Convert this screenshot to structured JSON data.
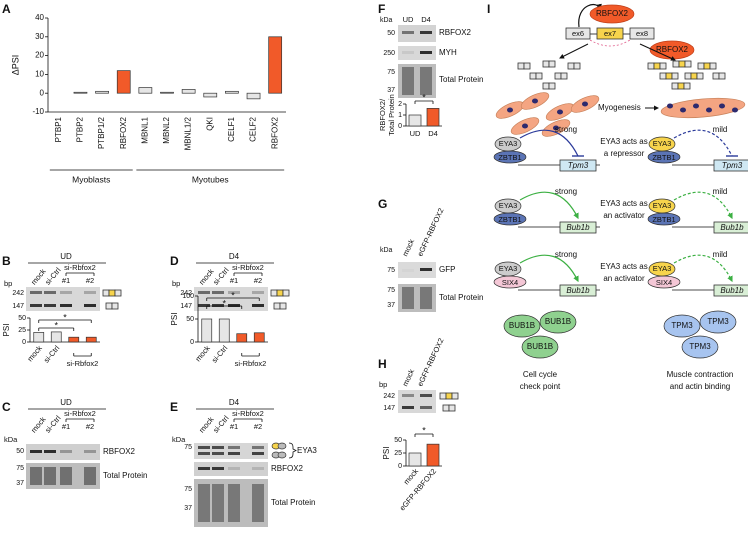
{
  "chart_data": [
    {
      "type": "bar",
      "ylabel": "ΔPSI",
      "categories": [
        "PTBP1",
        "PTBP2",
        "PTBP1/2",
        "RBFOX2",
        "MBNL1",
        "MBNL2",
        "MBNL1/2",
        "QKI",
        "CELF1",
        "CELF2",
        "RBFOX2"
      ],
      "values": [
        0,
        0.5,
        1,
        12,
        3,
        0.5,
        2,
        -2,
        1,
        -3,
        30
      ],
      "colors": [
        "#e6e6e6",
        "#e6e6e6",
        "#e6e6e6",
        "#f15a29",
        "#e6e6e6",
        "#e6e6e6",
        "#e6e6e6",
        "#e6e6e6",
        "#e6e6e6",
        "#e6e6e6",
        "#f15a29"
      ],
      "ylim": [
        -10,
        40
      ],
      "yticks": [
        -10,
        0,
        10,
        20,
        30,
        40
      ],
      "groups": [
        "Myoblasts",
        "Myotubes"
      ]
    },
    {
      "type": "bar",
      "ylabel": "PSI",
      "categories": [
        "mock",
        "si-Ctrl",
        null,
        null
      ],
      "group": "si-Rbfox2",
      "values": [
        20,
        21,
        10,
        10
      ],
      "colors": [
        "#e6e6e6",
        "#e6e6e6",
        "#f15a29",
        "#f15a29"
      ],
      "ylim": [
        0,
        50
      ],
      "yticks": [
        0,
        25,
        50
      ],
      "annotations": [
        "*",
        "*"
      ]
    },
    {
      "type": "bar",
      "ylabel": "PSI",
      "categories": [
        "mock",
        "si-Ctrl",
        null,
        null
      ],
      "group": "si-Rbfox2",
      "values": [
        50,
        50,
        18,
        20
      ],
      "colors": [
        "#e6e6e6",
        "#e6e6e6",
        "#f15a29",
        "#f15a29"
      ],
      "ylim": [
        0,
        100
      ],
      "yticks": [
        0,
        50,
        100
      ],
      "annotations": [
        "*",
        "*"
      ]
    },
    {
      "type": "bar",
      "ylabel": [
        "RBFOX2/",
        "Total Protein"
      ],
      "categories": [
        "UD",
        "D4"
      ],
      "values": [
        1,
        1.6
      ],
      "colors": [
        "#e6e6e6",
        "#f15a29"
      ],
      "ylim": [
        0,
        2
      ],
      "yticks": [
        0,
        1,
        2
      ],
      "annotations": [
        "*"
      ]
    },
    {
      "type": "bar",
      "ylabel": "PSI",
      "categories": [
        "mock",
        "eGFP-RBFOX2"
      ],
      "values": [
        25,
        42
      ],
      "colors": [
        "#e6e6e6",
        "#f15a29"
      ],
      "ylim": [
        0,
        50
      ],
      "yticks": [
        0,
        25,
        50
      ],
      "annotations": [
        "*"
      ]
    }
  ],
  "panels": {
    "a": {
      "letter": "A"
    },
    "b": {
      "letter": "B",
      "condition": "UD",
      "lanes": [
        "mock",
        "si-Ctrl"
      ],
      "group": "si-Rbfox2",
      "sublanes": [
        "#1",
        "#2"
      ],
      "bp": "bp",
      "sizes": [
        242,
        147
      ]
    },
    "c": {
      "letter": "C",
      "condition": "UD",
      "lanes": [
        "mock",
        "si-Ctrl"
      ],
      "group": "si-Rbfox2",
      "sublanes": [
        "#1",
        "#2"
      ],
      "kda": "kDa",
      "markers": [
        50,
        75,
        37
      ],
      "bands": [
        "RBFOX2",
        "Total Protein"
      ]
    },
    "d": {
      "letter": "D",
      "condition": "D4",
      "lanes": [
        "mock",
        "si-Ctrl"
      ],
      "group": "si-Rbfox2",
      "sublanes": [
        "#1",
        "#2"
      ],
      "bp": "bp",
      "sizes": [
        242,
        147
      ]
    },
    "e": {
      "letter": "E",
      "condition": "D4",
      "lanes": [
        "mock",
        "si-Ctrl"
      ],
      "group": "si-Rbfox2",
      "sublanes": [
        "#1",
        "#2"
      ],
      "kda": "kDa",
      "markers": [
        75,
        75,
        37
      ],
      "bands": [
        "EYA3",
        "RBFOX2",
        "Total Protein"
      ]
    },
    "f": {
      "letter": "F",
      "kda": "kDa",
      "lanes": [
        "UD",
        "D4"
      ],
      "markers": [
        50,
        250,
        75,
        37
      ],
      "bands": [
        "RBFOX2",
        "MYH",
        "Total Protein"
      ]
    },
    "g": {
      "letter": "G",
      "lanes": [
        "mock",
        "eGFP-RBFOX2"
      ],
      "kda": "kDa",
      "markers": [
        75,
        75,
        37
      ],
      "bands": [
        "GFP",
        "Total Protein"
      ]
    },
    "h": {
      "letter": "H",
      "bp": "bp",
      "lanes": [
        "mock",
        "eGFP-RBFOX2"
      ],
      "sizes": [
        242,
        147
      ]
    },
    "i": {
      "letter": "I",
      "exons": [
        "ex6",
        "ex7",
        "ex8"
      ],
      "factor": [
        "RBFOX2",
        "RBFOX2"
      ],
      "process": "Myogenesis",
      "rows": [
        {
          "left": {
            "protein": "EYA3",
            "partner": "ZBTB1",
            "strength": "strong",
            "gene": "Tpm3"
          },
          "note": [
            "EYA3 acts as",
            "a repressor"
          ],
          "right": {
            "protein": "EYA3",
            "partner": "ZBTB1",
            "strength": "mild",
            "gene": "Tpm3"
          }
        },
        {
          "left": {
            "protein": "EYA3",
            "partner": "ZBTB1",
            "strength": "strong",
            "gene": "Bub1b"
          },
          "note": [
            "EYA3 acts as",
            "an activator"
          ],
          "right": {
            "protein": "EYA3",
            "partner": "ZBTB1",
            "strength": "mild",
            "gene": "Bub1b"
          }
        },
        {
          "left": {
            "protein": "EYA3",
            "partner": "SIX4",
            "strength": "strong",
            "gene": "Bub1b"
          },
          "note": [
            "EYA3 acts as",
            "an activator"
          ],
          "right": {
            "protein": "EYA3",
            "partner": "SIX4",
            "strength": "mild",
            "gene": "Bub1b"
          }
        }
      ],
      "products": [
        {
          "proteins": [
            "BUB1B",
            "BUB1B",
            "BUB1B"
          ],
          "function": [
            "Cell cycle",
            "check point"
          ]
        },
        {
          "proteins": [
            "TPM3",
            "TPM3",
            "TPM3"
          ],
          "function": [
            "Muscle contraction",
            "and actin binding"
          ]
        }
      ]
    }
  }
}
